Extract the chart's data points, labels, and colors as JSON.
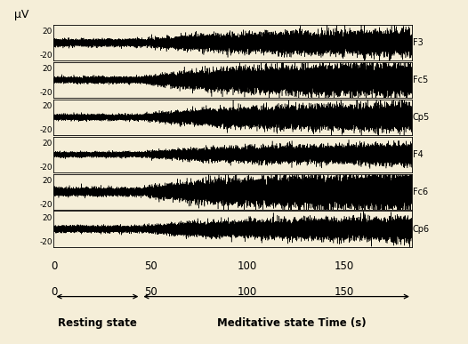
{
  "background_color": "#f5eed8",
  "channels": [
    "F3",
    "Fc5",
    "Cp5",
    "F4",
    "Fc6",
    "Cp6"
  ],
  "ylim": [
    -30,
    30
  ],
  "yticks": [
    20,
    -20
  ],
  "total_time": 185,
  "meditation_start": 45,
  "xlabel": "Time (s)",
  "ylabel": "μV",
  "xticks": [
    0,
    50,
    100,
    150
  ],
  "resting_label": "Resting state",
  "meditative_label": "Meditative state",
  "resting_amplitude_rest": 3.5,
  "resting_amplitude_med": 2.5,
  "meditation_amplitude_end": 14.0,
  "line_color": "#000000",
  "line_width": 0.35,
  "gamma_freq": 40,
  "sample_rate": 512,
  "channel_seeds": [
    10,
    20,
    30,
    40,
    50,
    60
  ],
  "channel_rest_amps": [
    3.5,
    3.0,
    2.8,
    2.5,
    4.0,
    3.2
  ],
  "channel_med_amps": [
    12.0,
    16.0,
    13.0,
    10.0,
    18.0,
    11.0
  ]
}
